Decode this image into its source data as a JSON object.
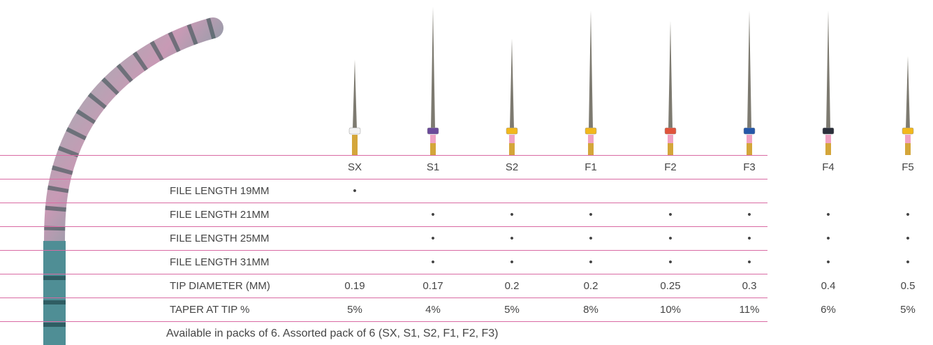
{
  "table": {
    "columns": [
      "SX",
      "S1",
      "S2",
      "F1",
      "F2",
      "F3",
      "F4",
      "F5"
    ],
    "rows": [
      {
        "label": "FILE LENGTH 19MM",
        "cells": [
          "•",
          null,
          null,
          null,
          null,
          null,
          null,
          null
        ]
      },
      {
        "label": "FILE LENGTH 21MM",
        "cells": [
          null,
          "•",
          "•",
          "•",
          "•",
          "•",
          "•",
          "•"
        ]
      },
      {
        "label": "FILE LENGTH 25MM",
        "cells": [
          null,
          "•",
          "•",
          "•",
          "•",
          "•",
          "•",
          "•"
        ]
      },
      {
        "label": "FILE LENGTH 31MM",
        "cells": [
          null,
          "•",
          "•",
          "•",
          "•",
          "•",
          "•",
          "•"
        ]
      },
      {
        "label": "TIP DIAMETER (MM)",
        "cells": [
          0.19,
          0.17,
          0.2,
          0.2,
          0.25,
          0.3,
          0.4,
          0.5
        ]
      },
      {
        "label": "TAPER AT TIP %",
        "cells": [
          "5%",
          "4%",
          "5%",
          "8%",
          "10%",
          "11%",
          "6%",
          "5%"
        ]
      }
    ]
  },
  "footnote": "Available in packs of 6. Assorted pack of 6 (SX, S1, S2, F1, F2, F3)"
}
